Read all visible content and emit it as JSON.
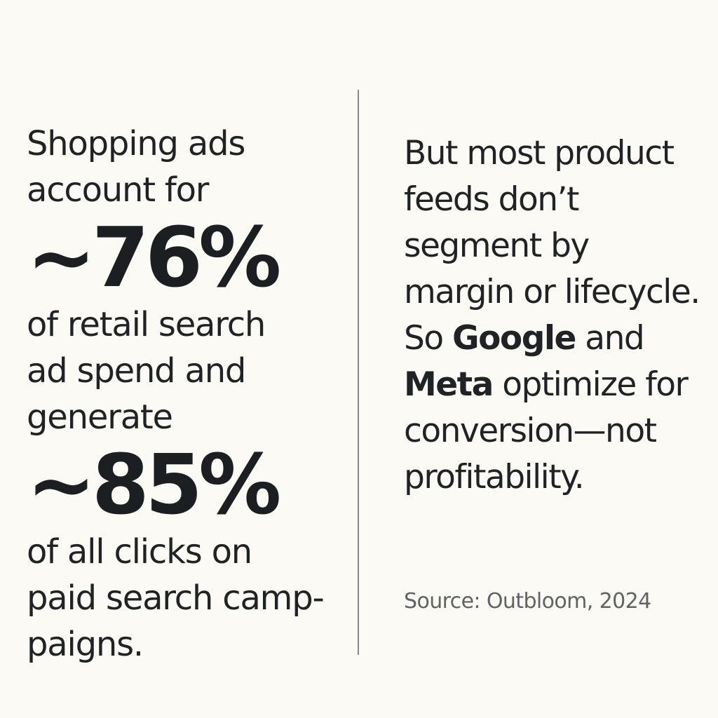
{
  "left": {
    "intro": [
      "Shopping ads",
      "account for"
    ],
    "stat1": "~76%",
    "middle": [
      "of retail search",
      "ad spend and",
      "generate"
    ],
    "stat2": "~85%",
    "outro": [
      "of all clicks on",
      "paid search camp-",
      "paigns."
    ]
  },
  "right": {
    "para1": [
      "But most product",
      "feeds don’t",
      "segment by",
      "margin or lifecycle."
    ],
    "para2": {
      "line1_prefix": "So ",
      "line1_bold": "Google",
      "line1_suffix": " and",
      "line2_bold": "Meta",
      "line2_suffix": " optimize for",
      "line3": "conversion—not",
      "line4": "profitability."
    }
  },
  "source": "Source: Outbloom, 2024"
}
